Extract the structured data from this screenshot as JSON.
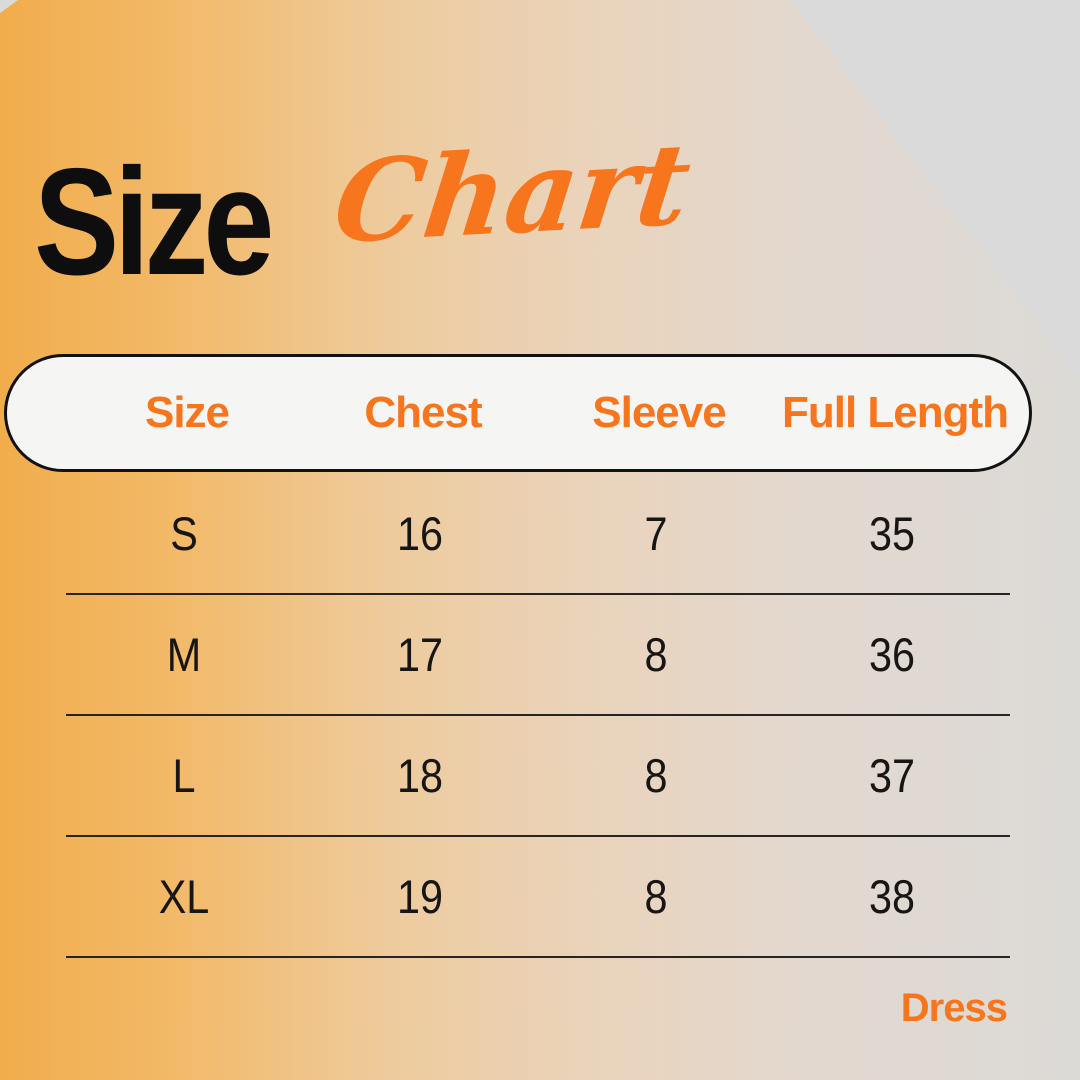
{
  "title": {
    "main": "Size",
    "accent": "Chart"
  },
  "chart_data": {
    "type": "table",
    "title": "Size Chart",
    "columns": [
      "Size",
      "Chest",
      "Sleeve",
      "Full Length"
    ],
    "rows": [
      [
        "S",
        16,
        7,
        35
      ],
      [
        "M",
        17,
        8,
        36
      ],
      [
        "L",
        18,
        8,
        37
      ],
      [
        "XL",
        19,
        8,
        38
      ]
    ],
    "footnote": "Dress"
  },
  "footer": {
    "label": "Dress"
  },
  "colors": {
    "accent_orange": "#f7751d",
    "title_black": "#0e0e0e",
    "row_text": "#171615",
    "divider": "#262524",
    "pill_background": "#f5f5f4",
    "pill_border": "#121212",
    "background_gray": "#d9dad9",
    "gradient_orange": "#f1ad4c"
  }
}
